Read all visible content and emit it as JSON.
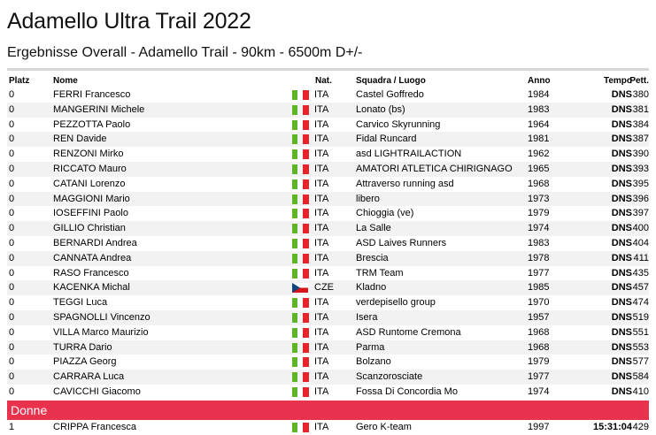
{
  "page": {
    "title": "Adamello Ultra Trail 2022",
    "subtitle": "Ergebnisse Overall - Adamello Trail - 90km - 6500m D+/-"
  },
  "colors": {
    "section_bg": "#e8324e",
    "row_alt": "#f2f2f2",
    "flag_green": "#5fb526",
    "flag_red": "#e8242b"
  },
  "table": {
    "headers": {
      "platz": "Platz",
      "nome": "Nome",
      "nat": "Nat.",
      "squadra": "Squadra / Luogo",
      "anno": "Anno",
      "tempo": "Tempo",
      "pett": "Pett."
    },
    "rows": [
      {
        "platz": "0",
        "nome": "FERRI Francesco",
        "flag": "it-flag-icon",
        "nat": "ITA",
        "squadra": "Castel Goffredo",
        "anno": "1984",
        "tempo": "DNS",
        "pett": "380"
      },
      {
        "platz": "0",
        "nome": "MANGERINI Michele",
        "flag": "it-flag-icon",
        "nat": "ITA",
        "squadra": "Lonato (bs)",
        "anno": "1983",
        "tempo": "DNS",
        "pett": "381"
      },
      {
        "platz": "0",
        "nome": "PEZZOTTA Paolo",
        "flag": "it-flag-icon",
        "nat": "ITA",
        "squadra": "Carvico Skyrunning",
        "anno": "1964",
        "tempo": "DNS",
        "pett": "384"
      },
      {
        "platz": "0",
        "nome": "REN Davide",
        "flag": "it-flag-icon",
        "nat": "ITA",
        "squadra": "Fidal Runcard",
        "anno": "1981",
        "tempo": "DNS",
        "pett": "387"
      },
      {
        "platz": "0",
        "nome": "RENZONI Mirko",
        "flag": "it-flag-icon",
        "nat": "ITA",
        "squadra": "asd LIGHTRAILACTION",
        "anno": "1962",
        "tempo": "DNS",
        "pett": "390"
      },
      {
        "platz": "0",
        "nome": "RICCATO Mauro",
        "flag": "it-flag-icon",
        "nat": "ITA",
        "squadra": "AMATORI ATLETICA CHIRIGNAGO",
        "anno": "1965",
        "tempo": "DNS",
        "pett": "393"
      },
      {
        "platz": "0",
        "nome": "CATANI Lorenzo",
        "flag": "it-flag-icon",
        "nat": "ITA",
        "squadra": "Attraverso running asd",
        "anno": "1968",
        "tempo": "DNS",
        "pett": "395"
      },
      {
        "platz": "0",
        "nome": "MAGGIONI Mario",
        "flag": "it-flag-icon",
        "nat": "ITA",
        "squadra": "libero",
        "anno": "1973",
        "tempo": "DNS",
        "pett": "396"
      },
      {
        "platz": "0",
        "nome": "IOSEFFINI Paolo",
        "flag": "it-flag-icon",
        "nat": "ITA",
        "squadra": "Chioggia (ve)",
        "anno": "1979",
        "tempo": "DNS",
        "pett": "397"
      },
      {
        "platz": "0",
        "nome": "GILLIO Christian",
        "flag": "it-flag-icon",
        "nat": "ITA",
        "squadra": "La Salle",
        "anno": "1974",
        "tempo": "DNS",
        "pett": "400"
      },
      {
        "platz": "0",
        "nome": "BERNARDI Andrea",
        "flag": "it-flag-icon",
        "nat": "ITA",
        "squadra": "ASD Laives Runners",
        "anno": "1983",
        "tempo": "DNS",
        "pett": "404"
      },
      {
        "platz": "0",
        "nome": "CANNATA Andrea",
        "flag": "it-flag-icon",
        "nat": "ITA",
        "squadra": "Brescia",
        "anno": "1978",
        "tempo": "DNS",
        "pett": "411"
      },
      {
        "platz": "0",
        "nome": "RASO Francesco",
        "flag": "it-flag-icon",
        "nat": "ITA",
        "squadra": "TRM Team",
        "anno": "1977",
        "tempo": "DNS",
        "pett": "435"
      },
      {
        "platz": "0",
        "nome": "KACENKA Michal",
        "flag": "cz-flag-icon",
        "nat": "CZE",
        "squadra": "Kladno",
        "anno": "1985",
        "tempo": "DNS",
        "pett": "457"
      },
      {
        "platz": "0",
        "nome": "TEGGI Luca",
        "flag": "it-flag-icon",
        "nat": "ITA",
        "squadra": "verdepisello group",
        "anno": "1970",
        "tempo": "DNS",
        "pett": "474"
      },
      {
        "platz": "0",
        "nome": "SPAGNOLLI Vincenzo",
        "flag": "it-flag-icon",
        "nat": "ITA",
        "squadra": "Isera",
        "anno": "1957",
        "tempo": "DNS",
        "pett": "519"
      },
      {
        "platz": "0",
        "nome": "VILLA Marco Maurizio",
        "flag": "it-flag-icon",
        "nat": "ITA",
        "squadra": "ASD Runtome Cremona",
        "anno": "1968",
        "tempo": "DNS",
        "pett": "551"
      },
      {
        "platz": "0",
        "nome": "TURRA Dario",
        "flag": "it-flag-icon",
        "nat": "ITA",
        "squadra": "Parma",
        "anno": "1968",
        "tempo": "DNS",
        "pett": "553"
      },
      {
        "platz": "0",
        "nome": "PIAZZA Georg",
        "flag": "it-flag-icon",
        "nat": "ITA",
        "squadra": "Bolzano",
        "anno": "1979",
        "tempo": "DNS",
        "pett": "577"
      },
      {
        "platz": "0",
        "nome": "CARRARA Luca",
        "flag": "it-flag-icon",
        "nat": "ITA",
        "squadra": "Scanzorosciate",
        "anno": "1977",
        "tempo": "DNS",
        "pett": "584"
      },
      {
        "platz": "0",
        "nome": "CAVICCHI Giacomo",
        "flag": "it-flag-icon",
        "nat": "ITA",
        "squadra": "Fossa Di Concordia Mo",
        "anno": "1974",
        "tempo": "DNS",
        "pett": "410"
      }
    ],
    "section": "Donne",
    "rows_after": [
      {
        "platz": "1",
        "nome": "CRIPPA Francesca",
        "flag": "it-flag-icon",
        "nat": "ITA",
        "squadra": "Gero K-team",
        "anno": "1997",
        "tempo": "15:31:04",
        "pett": "429"
      }
    ]
  }
}
